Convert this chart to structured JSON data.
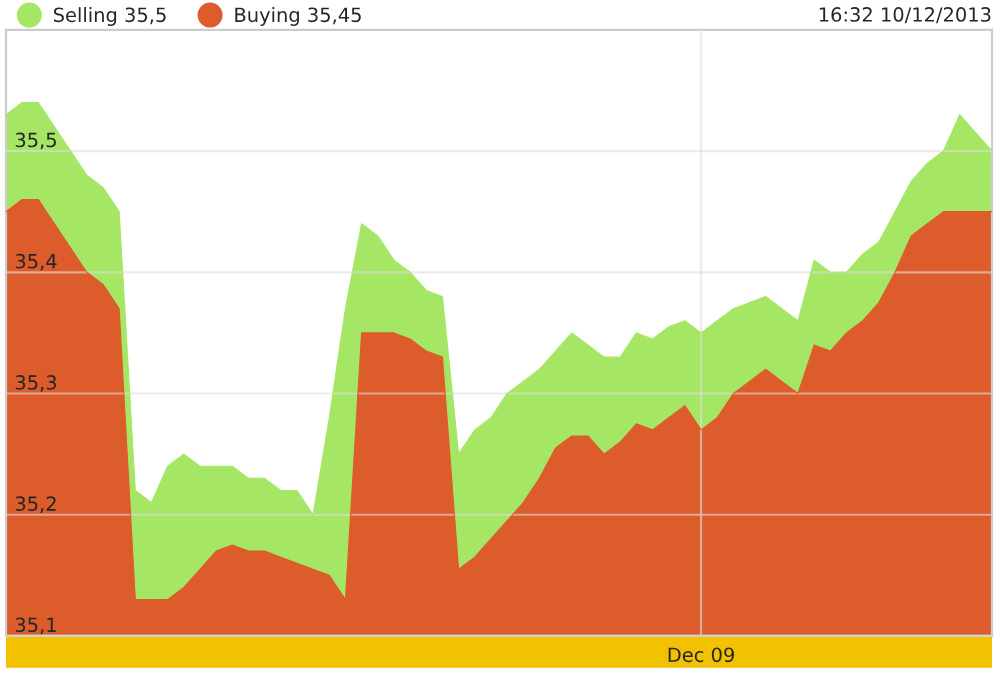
{
  "chart_data": {
    "type": "area",
    "annotations": [
      "16:32 10/12/2013"
    ],
    "categories": [
      null,
      null,
      null,
      null,
      null,
      null,
      null,
      null,
      null,
      null,
      null,
      null,
      null,
      null,
      null,
      null,
      null,
      null,
      null,
      null,
      null,
      null,
      null,
      null,
      null,
      null,
      null,
      null,
      null,
      null,
      null,
      null,
      null,
      null,
      null,
      null,
      null,
      null,
      null,
      null,
      null,
      null,
      null,
      "Dec 09",
      null,
      null,
      null,
      null,
      null,
      null,
      null,
      null,
      null,
      null,
      null,
      null,
      null,
      null,
      null,
      null,
      null,
      null
    ],
    "ylim": [
      35.1,
      35.6
    ],
    "yticks": [
      {
        "value": 35.1,
        "label": "35,1"
      },
      {
        "value": 35.2,
        "label": "35,2"
      },
      {
        "value": 35.3,
        "label": "35,3"
      },
      {
        "value": 35.4,
        "label": "35,4"
      },
      {
        "value": 35.5,
        "label": "35,5"
      }
    ],
    "grid": true,
    "legend": "top left",
    "series": [
      {
        "name": "Selling 35,5",
        "color": "#a6e665",
        "values": [
          35.53,
          35.54,
          35.54,
          35.52,
          35.5,
          35.48,
          35.47,
          35.45,
          35.22,
          35.21,
          35.24,
          35.25,
          35.24,
          35.24,
          35.24,
          35.23,
          35.23,
          35.22,
          35.22,
          35.2,
          35.28,
          35.37,
          35.44,
          35.43,
          35.41,
          35.4,
          35.385,
          35.38,
          35.25,
          35.27,
          35.28,
          35.3,
          35.31,
          35.32,
          35.335,
          35.35,
          35.34,
          35.33,
          35.33,
          35.35,
          35.345,
          35.355,
          35.36,
          35.35,
          35.36,
          35.37,
          35.375,
          35.38,
          35.37,
          35.36,
          35.41,
          35.4,
          35.4,
          35.415,
          35.425,
          35.45,
          35.475,
          35.49,
          35.5,
          35.53,
          35.515,
          35.5
        ]
      },
      {
        "name": "Buying 35,45",
        "color": "#dd5c2c",
        "values": [
          35.45,
          35.46,
          35.46,
          35.44,
          35.42,
          35.4,
          35.39,
          35.37,
          35.13,
          35.13,
          35.13,
          35.14,
          35.155,
          35.17,
          35.175,
          35.17,
          35.17,
          35.165,
          35.16,
          35.155,
          35.15,
          35.13,
          35.35,
          35.35,
          35.35,
          35.345,
          35.335,
          35.33,
          35.155,
          35.165,
          35.18,
          35.195,
          35.21,
          35.23,
          35.255,
          35.265,
          35.265,
          35.25,
          35.26,
          35.275,
          35.27,
          35.28,
          35.29,
          35.27,
          35.28,
          35.3,
          35.31,
          35.32,
          35.31,
          35.3,
          35.34,
          35.335,
          35.35,
          35.36,
          35.375,
          35.4,
          35.43,
          35.44,
          35.45,
          35.45,
          35.45,
          35.45
        ]
      }
    ]
  }
}
